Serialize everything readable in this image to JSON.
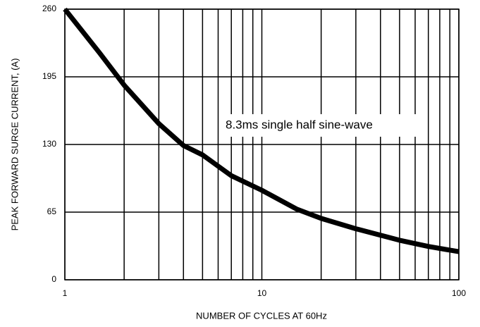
{
  "chart_data": {
    "type": "line",
    "x_label": "NUMBER OF CYCLES AT 60Hz",
    "y_label": "PEAK FORWARD SURGE CURRENT, (A)",
    "annotation": "8.3ms single half sine-wave",
    "x": [
      1,
      1.5,
      2,
      3,
      4,
      5,
      7,
      10,
      15,
      20,
      30,
      50,
      70,
      100
    ],
    "series": [
      {
        "name": "Peak forward surge current",
        "color": "#000000",
        "values": [
          260,
          218,
          187,
          150,
          129,
          120,
          100,
          86,
          68,
          59,
          49,
          38,
          32,
          27
        ]
      }
    ],
    "xlim": [
      1,
      100
    ],
    "xscale": "log",
    "xticks": [
      1,
      10,
      100
    ],
    "x_minor_ticks": [
      2,
      3,
      4,
      5,
      6,
      7,
      8,
      9,
      20,
      30,
      40,
      50,
      60,
      70,
      80,
      90
    ],
    "ylim": [
      0,
      260
    ],
    "yticks": [
      0,
      65,
      130,
      195,
      260
    ],
    "grid": true
  }
}
